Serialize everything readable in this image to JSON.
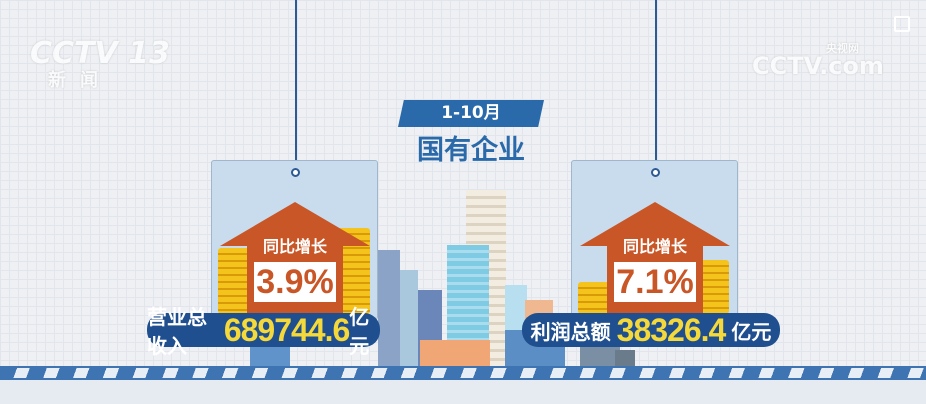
{
  "watermarks": {
    "left_logo": "CCTV 13",
    "left_sub": "新闻",
    "right_logo": "CCTV.com",
    "right_sub": "央视网"
  },
  "header": {
    "period": "1-10月",
    "title": "国有企业"
  },
  "cards": [
    {
      "label": "同比增长",
      "percent": "3.9%",
      "metric": "营业总收入",
      "value": "689744.6",
      "unit": "亿元"
    },
    {
      "label": "同比增长",
      "percent": "7.1%",
      "metric": "利润总额",
      "value": "38326.4",
      "unit": "亿元"
    }
  ],
  "colors": {
    "arrow": "#c95626",
    "pill": "#1f4f8f",
    "value": "#f5d93a",
    "badge": "#2a6aaa"
  }
}
